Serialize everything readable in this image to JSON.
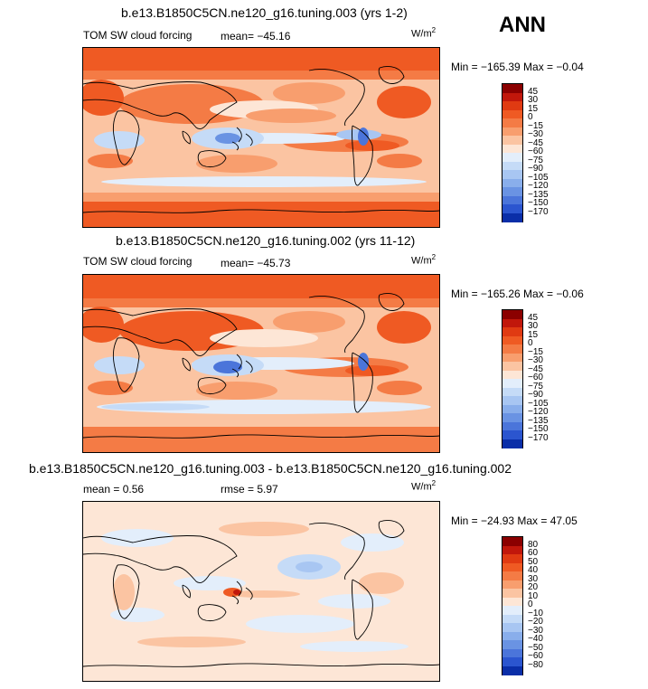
{
  "header": {
    "label": "ANN"
  },
  "unit_base": "W/m",
  "unit_exp": "2",
  "panels": [
    {
      "title": "b.e13.B1850C5CN.ne120_g16.tuning.003 (yrs 1-2)",
      "field": "TOM SW cloud forcing",
      "mean_text": "mean= −45.16",
      "range_text": "Min = −165.39 Max =  −0.04"
    },
    {
      "title": "b.e13.B1850C5CN.ne120_g16.tuning.002 (yrs 11-12)",
      "field": "TOM SW cloud forcing",
      "mean_text": "mean= −45.73",
      "range_text": "Min = −165.26 Max =  −0.06"
    },
    {
      "title": "b.e13.B1850C5CN.ne120_g16.tuning.003 - b.e13.B1850C5CN.ne120_g16.tuning.002",
      "mean_text": "mean =   0.56",
      "rmse_text": "rmse =   5.97",
      "range_text": "Min = −24.93 Max =  47.05"
    }
  ],
  "colorbars": {
    "absolute": {
      "labels": [
        "45",
        "30",
        "15",
        "0",
        "−15",
        "−30",
        "−45",
        "−60",
        "−75",
        "−90",
        "−105",
        "−120",
        "−135",
        "−150",
        "−170"
      ],
      "colors": [
        "#8b0000",
        "#c1170b",
        "#e03a12",
        "#ef5a23",
        "#f47b45",
        "#f89e6e",
        "#fbc4a2",
        "#fde6d6",
        "#e3eefb",
        "#c5dbf7",
        "#a8c6f2",
        "#89aeeb",
        "#6a93e3",
        "#4b75da",
        "#2b55cf",
        "#0a2ea8"
      ]
    },
    "difference": {
      "labels": [
        "80",
        "60",
        "50",
        "40",
        "30",
        "20",
        "10",
        "0",
        "−10",
        "−20",
        "−30",
        "−40",
        "−50",
        "−60",
        "−80"
      ],
      "colors": [
        "#8b0000",
        "#c1170b",
        "#e03a12",
        "#ef5a23",
        "#f47b45",
        "#f89e6e",
        "#fbc4a2",
        "#fde6d6",
        "#e3eefb",
        "#c5dbf7",
        "#a8c6f2",
        "#89aeeb",
        "#6a93e3",
        "#4b75da",
        "#2b55cf",
        "#0a2ea8"
      ]
    }
  },
  "chart_data": [
    {
      "type": "heatmap",
      "title": "b.e13.B1850C5CN.ne120_g16.tuning.003 (yrs 1-2)",
      "variable": "TOM SW cloud forcing",
      "units": "W/m2",
      "mean": -45.16,
      "min": -165.39,
      "max": -0.04,
      "contour_levels": [
        45,
        30,
        15,
        0,
        -15,
        -30,
        -45,
        -60,
        -75,
        -90,
        -105,
        -120,
        -135,
        -150,
        -170
      ]
    },
    {
      "type": "heatmap",
      "title": "b.e13.B1850C5CN.ne120_g16.tuning.002 (yrs 11-12)",
      "variable": "TOM SW cloud forcing",
      "units": "W/m2",
      "mean": -45.73,
      "min": -165.26,
      "max": -0.06,
      "contour_levels": [
        45,
        30,
        15,
        0,
        -15,
        -30,
        -45,
        -60,
        -75,
        -90,
        -105,
        -120,
        -135,
        -150,
        -170
      ]
    },
    {
      "type": "heatmap",
      "title": "b.e13.B1850C5CN.ne120_g16.tuning.003 - b.e13.B1850C5CN.ne120_g16.tuning.002",
      "units": "W/m2",
      "mean": 0.56,
      "rmse": 5.97,
      "min": -24.93,
      "max": 47.05,
      "contour_levels": [
        80,
        60,
        50,
        40,
        30,
        20,
        10,
        0,
        -10,
        -20,
        -30,
        -40,
        -50,
        -60,
        -80
      ]
    }
  ]
}
